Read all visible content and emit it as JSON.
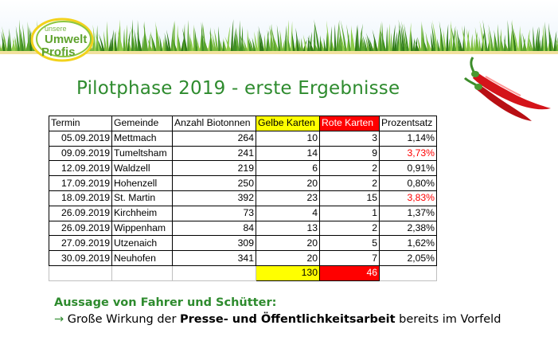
{
  "logo": {
    "line1": "unsere",
    "line2": "Umwelt",
    "line3": "Profis"
  },
  "title": "Pilotphase 2019 - erste Ergebnisse",
  "table": {
    "headers": [
      "Termin",
      "Gemeinde",
      "Anzahl Biotonnen",
      "Gelbe Karten",
      "Rote Karten",
      "Prozentsatz"
    ],
    "rows": [
      [
        "05.09.2019",
        "Mettmach",
        "264",
        "10",
        "3",
        "1,14%"
      ],
      [
        "09.09.2019",
        "Tumeltsham",
        "241",
        "14",
        "9",
        "3,73%"
      ],
      [
        "12.09.2019",
        "Waldzell",
        "219",
        "6",
        "2",
        "0,91%"
      ],
      [
        "17.09.2019",
        "Hohenzell",
        "250",
        "20",
        "2",
        "0,80%"
      ],
      [
        "18.09.2019",
        "St. Martin",
        "392",
        "23",
        "15",
        "3,83%"
      ],
      [
        "26.09.2019",
        "Kirchheim",
        "73",
        "4",
        "1",
        "1,37%"
      ],
      [
        "26.09.2019",
        "Wippenham",
        "84",
        "13",
        "2",
        "2,38%"
      ],
      [
        "27.09.2019",
        "Utzenaich",
        "309",
        "20",
        "5",
        "1,62%"
      ],
      [
        "30.09.2019",
        "Neuhofen",
        "341",
        "20",
        "7",
        "2,05%"
      ]
    ],
    "highlight_red_percent_rows": [
      1,
      4
    ],
    "totals": {
      "gelbe": "130",
      "rote": "46"
    }
  },
  "statement": {
    "heading": "Aussage von Fahrer und Schütter:",
    "arrow": "→",
    "text_before": " Große Wirkung der ",
    "text_bold": "Presse- und Öffentlichkeitsarbeit",
    "text_after": " bereits im Vorfeld"
  },
  "colors": {
    "green": "#2e8b2e",
    "yellow": "#ffff00",
    "red": "#ff0000"
  },
  "icons": {
    "decoration": "chili-peppers-icon",
    "banner": "grass-banner"
  }
}
